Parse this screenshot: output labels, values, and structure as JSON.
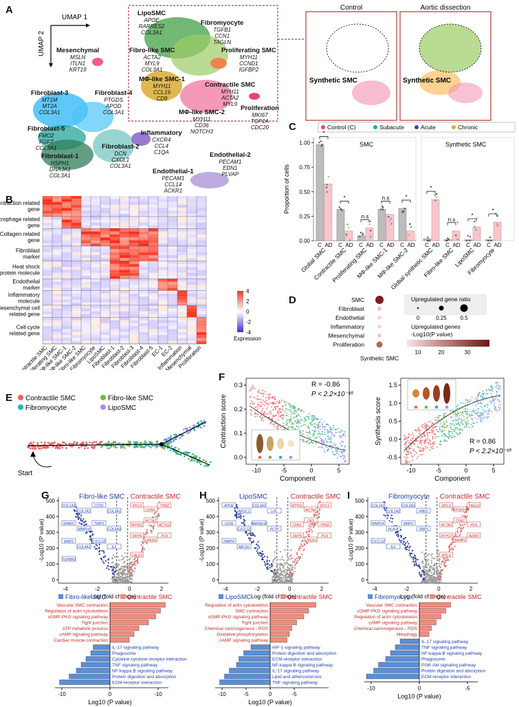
{
  "panels": {
    "A": "A",
    "B": "B",
    "C": "C",
    "D": "D",
    "E": "E",
    "F": "F",
    "G": "G",
    "H": "H",
    "I": "I"
  },
  "umap": {
    "axis_x": "UMAP 1",
    "axis_y": "UMAP 2",
    "clusters": [
      {
        "name": "Mesenchymal",
        "genes": [
          "MSLN",
          "ITLN1",
          "KRT19"
        ]
      },
      {
        "name": "LipoSMC",
        "genes": [
          "APOE",
          "RARRES2",
          "COL3A1"
        ]
      },
      {
        "name": "Fibromyocyte",
        "genes": [
          "TGFB1",
          "CCN1",
          "TAGLN"
        ]
      },
      {
        "name": "Fibro-like SMC",
        "genes": [
          "ACTA2",
          "MYL9",
          "COL3A1"
        ]
      },
      {
        "name": "Proliferating SMC",
        "genes": [
          "MYH11",
          "CCND1",
          "IGFBP2"
        ]
      },
      {
        "name": "MΦ-like SMC-1",
        "genes": [
          "MYH11",
          "CCL19",
          "CD9"
        ]
      },
      {
        "name": "Contractile SMC",
        "genes": [
          "MYH11",
          "ACTA2",
          "MYL9"
        ]
      },
      {
        "name": "MΦ-like SMC-2",
        "genes": [
          "MYH11",
          "CD36",
          "NOTCH3"
        ]
      },
      {
        "name": "Proliferation",
        "genes": [
          "MKI67",
          "TOP2A",
          "CDC20"
        ]
      },
      {
        "name": "Fibroblast-3",
        "genes": [
          "MT1M",
          "MT2A",
          "COL3A1"
        ]
      },
      {
        "name": "Fibroblast-4",
        "genes": [
          "PTGDS",
          "APOD",
          "COL3A1"
        ]
      },
      {
        "name": "Fibroblast-5",
        "genes": [
          "FMO2",
          "FGF7",
          "COL3A1"
        ]
      },
      {
        "name": "Fibroblast-1",
        "genes": [
          "HSPH1",
          "DNAJA1",
          "COL3A1"
        ]
      },
      {
        "name": "Fibroblast-2",
        "genes": [
          "DCN",
          "CXCL1",
          "COL3A1"
        ]
      },
      {
        "name": "Inflammatory",
        "genes": [
          "CXCR4",
          "CCL4",
          "C1QA"
        ]
      },
      {
        "name": "Endothelial-2",
        "genes": [
          "PECAM1",
          "EDN1",
          "PLVAP"
        ]
      },
      {
        "name": "Endothelial-1",
        "genes": [
          "PECAM1",
          "CCL14",
          "ACKR1"
        ]
      }
    ],
    "control_title": "Control",
    "ad_title": "Aortic dissection",
    "synthetic_label": "Synthetic SMC",
    "colors": {
      "smc": "#7cb342",
      "fib": "#26a69a",
      "fib3": "#29b6f6",
      "endo": "#9575cd",
      "mes": "#ec407a",
      "infl": "#7e57c2",
      "ctr": "#f06292",
      "fibro_like": "#9ccc65",
      "lipo": "#43a047",
      "myo": "#cddc39",
      "mphi": "#f9a825",
      "prolif": "#ff7043"
    }
  },
  "heatmap": {
    "row_groups": [
      "Contraction related gene",
      "Macrophage related gene",
      "Collagen related gene",
      "Fibroblast marker",
      "Heat shock protein molecule",
      "Endothelial marker",
      "Inflammatory molecule",
      "Mesenchymal cell related gene",
      "Cell cycle related gene"
    ],
    "columns": [
      "Contractile SMC",
      "Proliferating SMC",
      "MΦ-like SMC-1",
      "MΦ-like SMC-2",
      "Fibro-like SMC",
      "Fibromyocyte",
      "LipoSMC",
      "Fibroblast-1",
      "Fibroblast-2",
      "Fibroblast-3",
      "Fibroblast-4",
      "Fibroblast-5",
      "EC-1",
      "EC-2",
      "Inflammation",
      "Mesenchymal",
      "Proliferation"
    ],
    "legend_title": "Expression",
    "legend_ticks": [
      "4",
      "2",
      "0",
      "-2",
      "-4"
    ]
  },
  "panel_c": {
    "legend": [
      "Control (C)",
      "Subacute",
      "Acute",
      "Chronic"
    ],
    "legend_colors": [
      "#e0457b",
      "#26a69a",
      "#3949ab",
      "#f2a33a"
    ],
    "y_label": "Proportion of cells",
    "smc_title": "SMC",
    "syn_title": "Synthetic SMC",
    "y_ticks": [
      "0.00",
      "0.25",
      "0.50",
      "0.75",
      "1.00"
    ],
    "smc_groups": [
      "Global SMC",
      "Contractile SMC",
      "Proliferating SMC",
      "MΦ-like SMC-1",
      "MΦ-like SMC-2"
    ],
    "syn_groups": [
      "Global synthetic SMC",
      "Fibro-like SMC",
      "LipoSMC",
      "Fibromyocyte"
    ],
    "smc_control": [
      0.98,
      0.32,
      0.05,
      0.32,
      0.33
    ],
    "smc_ad": [
      0.58,
      0.1,
      0.13,
      0.27,
      0.1
    ],
    "syn_control": [
      0.02,
      0.01,
      0.01,
      0.01
    ],
    "syn_ad": [
      0.42,
      0.1,
      0.14,
      0.19
    ],
    "smc_sig": [
      "*",
      "*",
      "n.s",
      "n.s",
      "*"
    ],
    "syn_sig": [
      "*",
      "n.s",
      "*",
      "*"
    ],
    "c_label": "C",
    "ad_label": "AD"
  },
  "panel_d": {
    "rows": [
      "SMC",
      "Fibroblast",
      "Endothelial",
      "Inflammatory",
      "Mesenchymal",
      "Proliferation"
    ],
    "xlabel": "Synthetic SMC",
    "size_title": "Upregulated gene ratio",
    "size_ticks": [
      "0",
      "0.25",
      "0.5"
    ],
    "color_title": "Upregulated genes",
    "color_sub": "-Log10(P value)",
    "color_ticks": [
      "10",
      "20",
      "30"
    ]
  },
  "panel_e": {
    "legend": [
      "Contractile SMC",
      "Fibro-like SMC",
      "Fibromyocyte",
      "LipoSMC"
    ],
    "colors": [
      "#f06262",
      "#7cb342",
      "#26b5b5",
      "#b388ff"
    ],
    "start": "Start"
  },
  "panel_f": {
    "left": {
      "ylabel": "Contraction score",
      "xlabel": "Component",
      "r": "R = -0.86",
      "p": "P < 2.2×10⁻¹⁶",
      "yticks": [
        "0.0",
        "0.1",
        "0.2",
        "0.3"
      ],
      "xticks": [
        "-10",
        "-5",
        "0",
        "5"
      ]
    },
    "right": {
      "ylabel": "Synthesis score",
      "xlabel": "Component",
      "r": "R = 0.86",
      "p": "P < 2.2×10⁻¹⁶",
      "yticks": [
        "-0.5",
        "0.0",
        "0.5",
        "1.0",
        "1.5"
      ],
      "xticks": [
        "-10",
        "-5",
        "0",
        "5"
      ]
    }
  },
  "volcano": {
    "ylabel": "-Log10 (P value)",
    "xlabel": "Log (fold change)",
    "yticks": [
      "0",
      "100",
      "200",
      "300",
      "400",
      "500"
    ],
    "G": {
      "left": "Fibro-like SMC",
      "right": "Contractile SMC",
      "xticks": [
        "-4",
        "-2",
        "0",
        "2"
      ],
      "left_genes": [
        "COL1A2",
        "COL1A1",
        "CCN1",
        "COL3A1",
        "SPARC",
        "MMP14",
        "TIMP1",
        "COL6A3",
        "MMP2",
        "COL4A1",
        "CXCL12",
        "IL6",
        "TGFBR3"
      ],
      "right_genes": [
        "MYL9",
        "CNN1",
        "TPM2",
        "MYH11",
        "ACTA2",
        "ACTG2",
        "SMTN",
        "LMOD1",
        "PLN",
        "CALD1"
      ]
    },
    "H": {
      "left": "LipoSMC",
      "right": "Contractile SMC",
      "xticks": [
        "-4",
        "-2",
        "0",
        "2"
      ],
      "left_genes": [
        "APOE",
        "APOC1",
        "COL3A1",
        "LPL",
        "CD36",
        "CXCL12",
        "RARRES2",
        "PLTP",
        "FABP4",
        "ABCA1"
      ],
      "right_genes": [
        "MYH11",
        "ACTA2",
        "MYL9",
        "CNN1",
        "DES",
        "TPM2",
        "SMTN",
        "LMOD1",
        "PLN"
      ]
    },
    "I": {
      "left": "Fibromyocyte",
      "right": "Contractile SMC",
      "xticks": [
        "-4",
        "-2",
        "0",
        "2"
      ],
      "left_genes": [
        "COL1A1",
        "COL1A2",
        "COL3A1",
        "FBN1",
        "MMP14",
        "HLA-B",
        "MMP2",
        "TIMP1",
        "CXCL12",
        "IL6"
      ],
      "right_genes": [
        "MYL9",
        "PPP1R14A",
        "TAGLN",
        "ACTA2",
        "CNN1",
        "PLN",
        "MYH11",
        "RAMP1",
        "ADIRF",
        "MYL6"
      ]
    }
  },
  "bars": {
    "xlabel": "Log10 (P value)",
    "G": {
      "left": "Fibro-like SMC",
      "right": "Contractile SMC",
      "up": [
        "Vascular SMC contraction",
        "Regulation of actin cytoskeleton",
        "cGMP-PKG signaling pathway",
        "Tight junction",
        "ATP metabolic process",
        "cAMP signaling pathway",
        "Cardiac muscle contraction"
      ],
      "up_vals": [
        11.5,
        10.5,
        9.5,
        8.0,
        6.0,
        5.0,
        4.0
      ],
      "down": [
        "IL-17 signaling pathway",
        "Phagosome",
        "Cytokine-cytokine receptor interaction",
        "TNF signaling pathway",
        "NF-kappa B signaling pathway",
        "Protein digestion and absorption",
        "ECM-receptor interaction"
      ],
      "down_vals": [
        3.5,
        4.0,
        5.0,
        6.0,
        7.0,
        8.5,
        10.5
      ],
      "xticks": [
        "-10",
        "0",
        "-10"
      ]
    },
    "H": {
      "left": "LipoSMC",
      "right": "Contractile SMC",
      "up": [
        "Regulation of actin cytoskeleton",
        "SMC contraction",
        "cGMP-PKG signaling pathway",
        "Tight junction",
        "Chemical carcinogenesis - ROS",
        "Oxidative phosphorylation",
        "cAMP signaling pathway"
      ],
      "up_vals": [
        9.5,
        8.0,
        7.0,
        5.5,
        4.5,
        4.0,
        3.5
      ],
      "down": [
        "HIF-1 signaling pathway",
        "Protein digestion and absorption",
        "ECM-receptor interaction",
        "NF-kappa B signaling pathway",
        "IL-17 signaling pathway",
        "Lipid and atherosclerosis",
        "TNF signaling pathway"
      ],
      "down_vals": [
        4.0,
        5.5,
        6.5,
        7.0,
        8.5,
        9.5,
        10.5
      ],
      "xticks": [
        "-10",
        "-5",
        "0",
        "-5"
      ]
    },
    "I": {
      "left": "Fibromyocyte",
      "right": "Contractile SMC",
      "up": [
        "Vascular SMC contraction",
        "cGMP-PKG signaling pathway",
        "Regulation of actin cytoskeleton",
        "cAMP signaling pathway",
        "Chemical carcinogenesis - ROS",
        "Mitophagy"
      ],
      "up_vals": [
        6.5,
        5.5,
        4.5,
        3.5,
        2.5,
        2.0
      ],
      "down": [
        "IL-17 signaling pathway",
        "TNF signaling pathway",
        "NF-kappa B signaling pathway",
        "Phagosome",
        "PI3K-Akt signaling pathway",
        "Protein digestion and absorption",
        "ECM-receptor interaction"
      ],
      "down_vals": [
        4.0,
        5.0,
        6.0,
        7.0,
        8.5,
        9.5,
        11.0
      ],
      "xticks": [
        "-10",
        "0",
        "-5"
      ]
    }
  }
}
